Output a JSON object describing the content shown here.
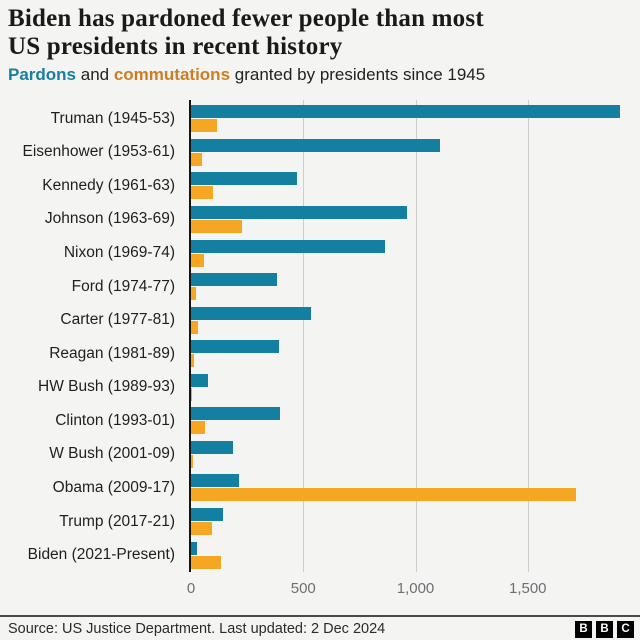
{
  "header": {
    "title_line1": "Biden has pardoned fewer people than most",
    "title_line2": "US presidents in recent history",
    "subtitle": {
      "pardons": "Pardons",
      "middle": " and ",
      "commutations": "commutations",
      "rest": " granted by presidents since 1945"
    }
  },
  "colors": {
    "pardons_bar": "#1380A1",
    "commutations_bar": "#F5A623",
    "pardons_text": "#17809E",
    "commutations_text": "#CE7E22",
    "gridline": "#cccccc",
    "axis_line": "#141414",
    "background": "#f4f4f3"
  },
  "chart_data": {
    "type": "bar",
    "orientation": "horizontal",
    "title": "Biden has pardoned fewer people than most US presidents in recent history",
    "subtitle": "Pardons and commutations granted by presidents since 1945",
    "categories": [
      "Truman (1945-53)",
      "Eisenhower (1953-61)",
      "Kennedy (1961-63)",
      "Johnson (1963-69)",
      "Nixon (1969-74)",
      "Ford (1974-77)",
      "Carter (1977-81)",
      "Reagan (1981-89)",
      "HW Bush (1989-93)",
      "Clinton (1993-01)",
      "W Bush (2001-09)",
      "Obama (2009-17)",
      "Trump (2017-21)",
      "Biden (2021-Present)"
    ],
    "series": [
      {
        "name": "Pardons",
        "color": "#1380A1",
        "values": [
          1913,
          1110,
          472,
          960,
          863,
          382,
          534,
          393,
          74,
          396,
          189,
          212,
          143,
          26
        ]
      },
      {
        "name": "Commutations",
        "color": "#F5A623",
        "values": [
          118,
          47,
          100,
          226,
          60,
          22,
          29,
          13,
          3,
          61,
          11,
          1715,
          94,
          132
        ]
      }
    ],
    "xlim": [
      0,
      2000
    ],
    "x_ticks": [
      0,
      500,
      1000,
      1500
    ],
    "x_tick_labels": [
      "0",
      "500",
      "1,000",
      "1,500"
    ],
    "grid": true,
    "legend_position": "in-subtitle"
  },
  "footer": {
    "source": "Source: US Justice Department. Last updated: 2 Dec 2024",
    "logo_letters": [
      "B",
      "B",
      "C"
    ]
  }
}
